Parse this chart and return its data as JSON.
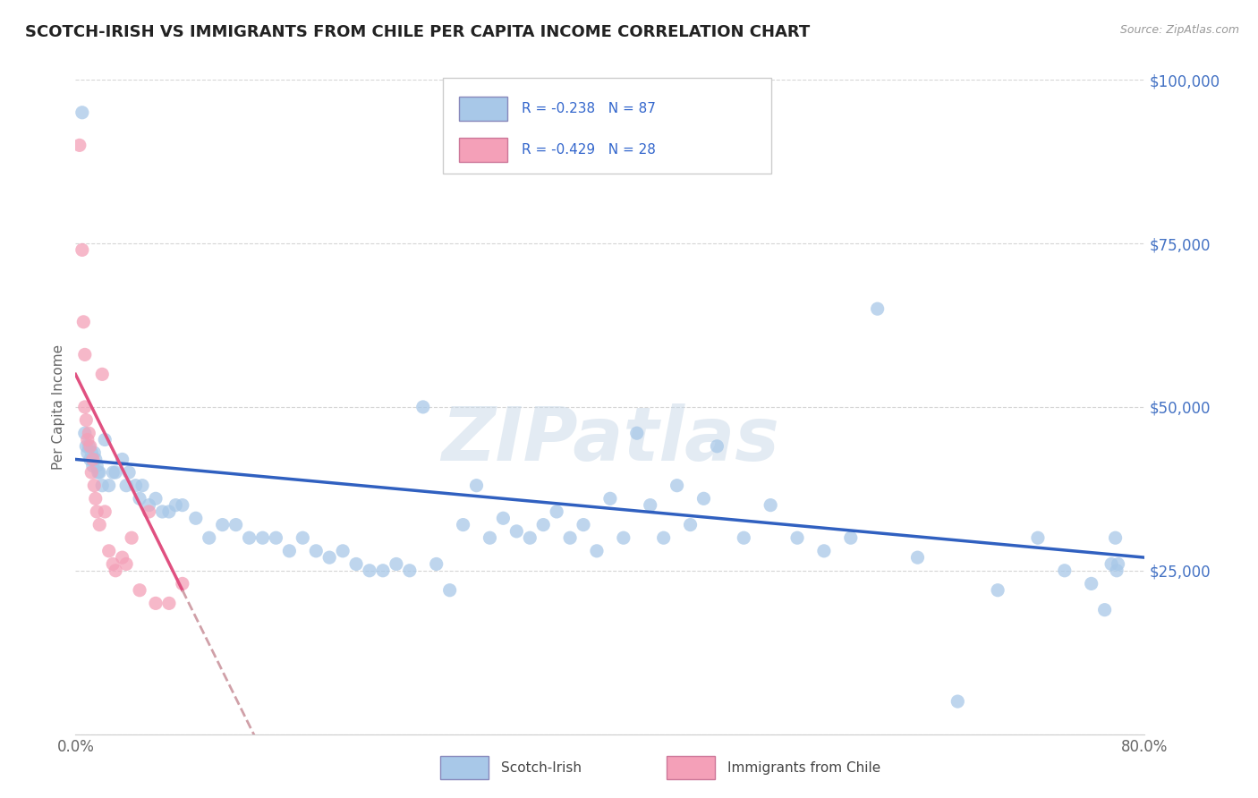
{
  "title": "SCOTCH-IRISH VS IMMIGRANTS FROM CHILE PER CAPITA INCOME CORRELATION CHART",
  "source": "Source: ZipAtlas.com",
  "ylabel": "Per Capita Income",
  "x_min": 0.0,
  "x_max": 0.8,
  "y_min": 0,
  "y_max": 100000,
  "y_ticks": [
    0,
    25000,
    50000,
    75000,
    100000
  ],
  "y_tick_labels": [
    "",
    "$25,000",
    "$50,000",
    "$75,000",
    "$100,000"
  ],
  "x_ticks": [
    0.0,
    0.8
  ],
  "x_tick_labels": [
    "0.0%",
    "80.0%"
  ],
  "series1_color": "#a8c8e8",
  "series2_color": "#f4a0b8",
  "series1_label": "Scotch-Irish",
  "series2_label": "Immigrants from Chile",
  "series1_R": "-0.238",
  "series1_N": "87",
  "series2_R": "-0.429",
  "series2_N": "28",
  "trend1_color": "#3060c0",
  "trend2_color": "#e05080",
  "trend2_dash_color": "#d0a0a8",
  "watermark": "ZIPatlas",
  "scotch_irish_x": [
    0.005,
    0.007,
    0.008,
    0.009,
    0.01,
    0.011,
    0.012,
    0.013,
    0.014,
    0.015,
    0.016,
    0.017,
    0.018,
    0.02,
    0.022,
    0.025,
    0.028,
    0.03,
    0.035,
    0.038,
    0.04,
    0.045,
    0.048,
    0.05,
    0.055,
    0.06,
    0.065,
    0.07,
    0.075,
    0.08,
    0.09,
    0.1,
    0.11,
    0.12,
    0.13,
    0.14,
    0.15,
    0.16,
    0.17,
    0.18,
    0.19,
    0.2,
    0.21,
    0.22,
    0.23,
    0.24,
    0.25,
    0.26,
    0.27,
    0.28,
    0.29,
    0.3,
    0.31,
    0.32,
    0.33,
    0.34,
    0.35,
    0.36,
    0.37,
    0.38,
    0.39,
    0.4,
    0.41,
    0.42,
    0.43,
    0.44,
    0.45,
    0.46,
    0.47,
    0.48,
    0.5,
    0.52,
    0.54,
    0.56,
    0.58,
    0.6,
    0.63,
    0.66,
    0.69,
    0.72,
    0.74,
    0.76,
    0.77,
    0.775,
    0.778,
    0.779,
    0.78
  ],
  "scotch_irish_y": [
    95000,
    46000,
    44000,
    43000,
    44000,
    42000,
    43000,
    41000,
    43000,
    42000,
    41000,
    40000,
    40000,
    38000,
    45000,
    38000,
    40000,
    40000,
    42000,
    38000,
    40000,
    38000,
    36000,
    38000,
    35000,
    36000,
    34000,
    34000,
    35000,
    35000,
    33000,
    30000,
    32000,
    32000,
    30000,
    30000,
    30000,
    28000,
    30000,
    28000,
    27000,
    28000,
    26000,
    25000,
    25000,
    26000,
    25000,
    50000,
    26000,
    22000,
    32000,
    38000,
    30000,
    33000,
    31000,
    30000,
    32000,
    34000,
    30000,
    32000,
    28000,
    36000,
    30000,
    46000,
    35000,
    30000,
    38000,
    32000,
    36000,
    44000,
    30000,
    35000,
    30000,
    28000,
    30000,
    65000,
    27000,
    5000,
    22000,
    30000,
    25000,
    23000,
    19000,
    26000,
    30000,
    25000,
    26000
  ],
  "chile_x": [
    0.003,
    0.005,
    0.006,
    0.007,
    0.007,
    0.008,
    0.009,
    0.01,
    0.011,
    0.012,
    0.013,
    0.014,
    0.015,
    0.016,
    0.018,
    0.02,
    0.022,
    0.025,
    0.028,
    0.03,
    0.035,
    0.038,
    0.042,
    0.048,
    0.055,
    0.06,
    0.07,
    0.08
  ],
  "chile_y": [
    90000,
    74000,
    63000,
    58000,
    50000,
    48000,
    45000,
    46000,
    44000,
    40000,
    42000,
    38000,
    36000,
    34000,
    32000,
    55000,
    34000,
    28000,
    26000,
    25000,
    27000,
    26000,
    30000,
    22000,
    34000,
    20000,
    20000,
    23000
  ]
}
